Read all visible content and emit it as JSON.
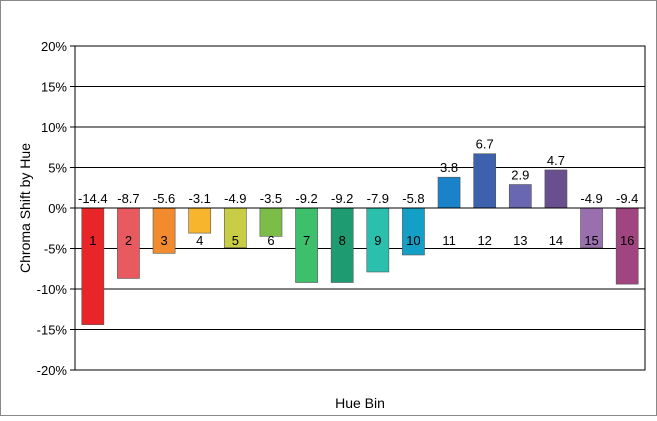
{
  "chart_data": {
    "type": "bar",
    "categories": [
      "1",
      "2",
      "3",
      "4",
      "5",
      "6",
      "7",
      "8",
      "9",
      "10",
      "11",
      "12",
      "13",
      "14",
      "15",
      "16"
    ],
    "values": [
      -14.4,
      -8.7,
      -5.6,
      -3.1,
      -4.9,
      -3.5,
      -9.2,
      -9.2,
      -7.9,
      -5.8,
      3.8,
      6.7,
      2.9,
      4.7,
      -4.9,
      -9.4
    ],
    "value_labels": [
      "-14.4",
      "-8.7",
      "-5.6",
      "-3.1",
      "-4.9",
      "-3.5",
      "-9.2",
      "-9.2",
      "-7.9",
      "-5.8",
      "3.8",
      "6.7",
      "2.9",
      "4.7",
      "-4.9",
      "-9.4"
    ],
    "colors": [
      "#e8262a",
      "#e85a5f",
      "#f28a2e",
      "#f6b52d",
      "#c9cc45",
      "#7bbd48",
      "#3dbf6c",
      "#1f9b72",
      "#2bbfae",
      "#139fc6",
      "#1a82c9",
      "#3d61ad",
      "#6a67b2",
      "#6a4f8e",
      "#9a6fae",
      "#a0457f"
    ],
    "title": "",
    "xlabel": "Hue Bin",
    "ylabel": "Chroma Shift by Hue",
    "ylim": [
      -20,
      20
    ],
    "yticks": [
      20,
      15,
      10,
      5,
      0,
      -5,
      -10,
      -15,
      -20
    ],
    "ytick_labels": [
      "20%",
      "15%",
      "10%",
      "5%",
      "0%",
      "-5%",
      "-10%",
      "-15%",
      "-20%"
    ],
    "grid": true,
    "legend": "none"
  }
}
